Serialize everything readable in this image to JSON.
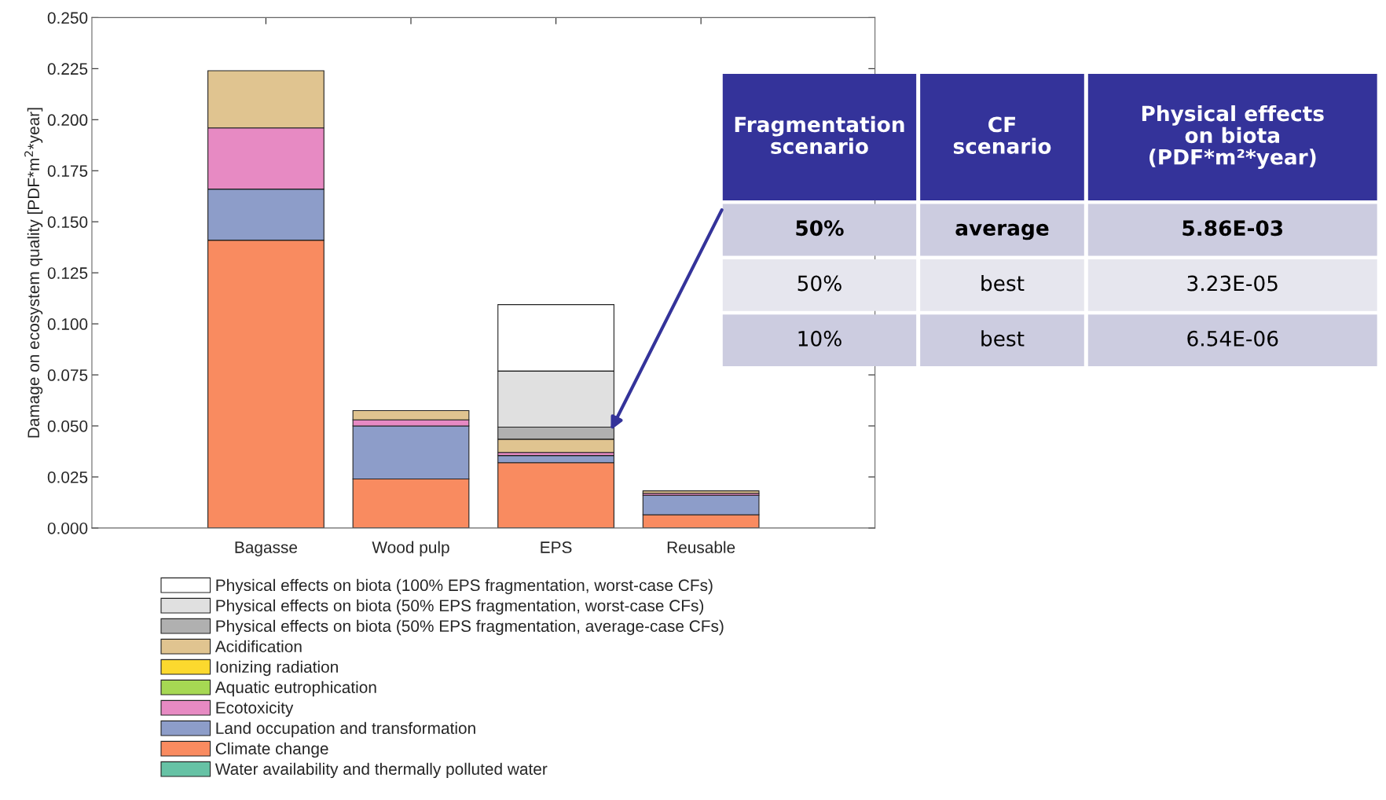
{
  "chart_data": [
    {
      "type": "bar",
      "stacked": true,
      "ylabel": "Damage on ecosystem quality [PDF*m$^{2}$*year]",
      "categories": [
        "Bagasse",
        "Wood pulp",
        "EPS",
        "Reusable"
      ],
      "ylim": [
        0,
        0.25
      ],
      "yticks": [
        {
          "value": 0,
          "label": "0.000"
        },
        {
          "value": 0.025,
          "label": "0.025"
        },
        {
          "value": 0.05,
          "label": "0.050"
        },
        {
          "value": 0.075,
          "label": "0.075"
        },
        {
          "value": 0.1,
          "label": "0.100"
        },
        {
          "value": 0.125,
          "label": "0.125"
        },
        {
          "value": 0.15,
          "label": "0.150"
        },
        {
          "value": 0.175,
          "label": "0.175"
        },
        {
          "value": 0.2,
          "label": "0.200"
        },
        {
          "value": 0.225,
          "label": "0.225"
        },
        {
          "value": 0.25,
          "label": "0.250"
        }
      ],
      "grid": false,
      "legend": "bottom",
      "series": [
        {
          "name": "Water availability and thermally polluted water",
          "color": "#66c2a5",
          "values": [
            0,
            0,
            0,
            0
          ]
        },
        {
          "name": "Climate change",
          "color": "#f98b60",
          "values": [
            0.141,
            0.024,
            0.032,
            0.0065
          ]
        },
        {
          "name": "Land occupation and transformation",
          "color": "#8d9dc9",
          "values": [
            0.025,
            0.026,
            0.0035,
            0.0095
          ]
        },
        {
          "name": "Ecotoxicity",
          "color": "#e78ac3",
          "values": [
            0.03,
            0.003,
            0.0015,
            0.001
          ]
        },
        {
          "name": "Aquatic eutrophication",
          "color": "#a6d853",
          "values": [
            0,
            0,
            0,
            0
          ]
        },
        {
          "name": "Ionizing radiation",
          "color": "#fcd92e",
          "values": [
            0,
            0,
            0,
            0
          ]
        },
        {
          "name": "Acidification",
          "color": "#e0c490",
          "values": [
            0.028,
            0.0045,
            0.0065,
            0.0012
          ]
        },
        {
          "name": "Physical effects on biota (50% EPS fragmentation, average-case CFs)",
          "color": "#b0b0b0",
          "values": [
            0,
            0,
            0.0059,
            0
          ]
        },
        {
          "name": "Physical effects on biota (50% EPS fragmentation, worst-case CFs)",
          "color": "#e0e0e0",
          "values": [
            0,
            0,
            0.0275,
            0
          ]
        },
        {
          "name": "Physical effects on biota (100% EPS fragmentation, worst-case CFs)",
          "color": "#ffffff",
          "values": [
            0,
            0,
            0.0325,
            0
          ]
        }
      ]
    },
    {
      "type": "other",
      "annotations": [
        "Fragmentation\nscenario",
        "CF\nscenario",
        "Physical effects\non biota\n(PDF*m²*year)",
        "50%",
        "average",
        "5.86E-03",
        "50%",
        "best",
        "3.23E-05",
        "10%",
        "best",
        "6.54E-06"
      ]
    }
  ]
}
